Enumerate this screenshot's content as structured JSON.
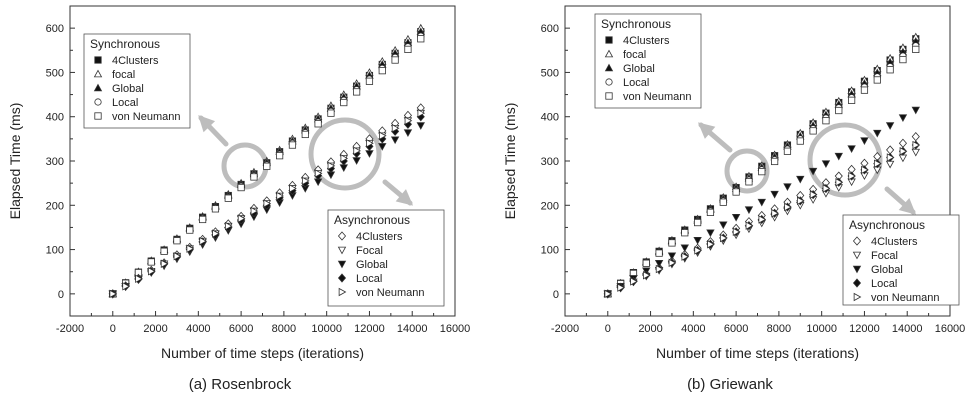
{
  "captions": [
    "(a) Rosenbrock",
    "(b) Griewank"
  ],
  "chart_data": [
    {
      "type": "scatter",
      "xlabel": "Number of time steps (iterations)",
      "ylabel": "Elapsed Time (ms)",
      "xlim": [
        -2000,
        16000
      ],
      "ylim": [
        -50,
        650
      ],
      "xticks": [
        -2000,
        0,
        2000,
        4000,
        6000,
        8000,
        10000,
        12000,
        14000,
        16000
      ],
      "yticks": [
        0,
        100,
        200,
        300,
        400,
        500,
        600
      ],
      "groups": [
        {
          "title": "Synchronous",
          "legend_position": "top-left",
          "series": [
            {
              "name": "4Clusters",
              "marker": "square-filled",
              "values": [
                0,
                25,
                49,
                74,
                99,
                123,
                148,
                173,
                197,
                222,
                247,
                271,
                296,
                321,
                345,
                370,
                395,
                419,
                444,
                469,
                493,
                518,
                543,
                567,
                592
              ]
            },
            {
              "name": "focal",
              "marker": "triangle-up-open",
              "values": [
                0,
                25,
                50,
                75,
                100,
                125,
                150,
                175,
                200,
                225,
                250,
                275,
                300,
                325,
                350,
                375,
                400,
                425,
                450,
                475,
                500,
                525,
                550,
                575,
                600
              ]
            },
            {
              "name": "Global",
              "marker": "triangle-up-filled",
              "values": [
                0,
                25,
                49,
                74,
                99,
                123,
                148,
                173,
                197,
                222,
                247,
                271,
                296,
                321,
                345,
                370,
                395,
                419,
                444,
                469,
                493,
                518,
                543,
                567,
                592
              ]
            },
            {
              "name": "Local",
              "marker": "circle-open",
              "values": [
                0,
                24,
                49,
                73,
                97,
                121,
                146,
                170,
                194,
                218,
                243,
                267,
                291,
                315,
                340,
                364,
                388,
                412,
                437,
                461,
                485,
                509,
                534,
                558,
                582
              ]
            },
            {
              "name": "von Neumann",
              "marker": "square-open",
              "values": [
                0,
                24,
                48,
                72,
                96,
                120,
                144,
                168,
                192,
                216,
                240,
                264,
                288,
                312,
                336,
                360,
                384,
                408,
                432,
                456,
                480,
                504,
                528,
                552,
                576
              ]
            }
          ]
        },
        {
          "title": "Asynchronous",
          "legend_position": "bottom-right",
          "series": [
            {
              "name": "4Clusters",
              "marker": "diamond-open",
              "values": [
                0,
                18,
                35,
                53,
                70,
                88,
                105,
                123,
                140,
                158,
                175,
                193,
                210,
                228,
                245,
                263,
                280,
                298,
                315,
                333,
                350,
                368,
                385,
                403,
                420
              ]
            },
            {
              "name": "Focal",
              "marker": "triangle-down-open",
              "values": [
                0,
                17,
                34,
                51,
                68,
                85,
                102,
                119,
                136,
                153,
                170,
                187,
                204,
                221,
                238,
                255,
                272,
                289,
                306,
                323,
                340,
                357,
                374,
                391,
                408
              ]
            },
            {
              "name": "Global",
              "marker": "triangle-down-filled",
              "values": [
                0,
                16,
                32,
                48,
                63,
                79,
                95,
                111,
                127,
                143,
                158,
                174,
                190,
                206,
                222,
                238,
                253,
                269,
                285,
                301,
                317,
                333,
                348,
                364,
                380
              ]
            },
            {
              "name": "Local",
              "marker": "diamond-filled",
              "values": [
                0,
                17,
                33,
                50,
                67,
                83,
                100,
                117,
                133,
                150,
                167,
                183,
                200,
                217,
                233,
                250,
                267,
                283,
                300,
                317,
                333,
                350,
                367,
                383,
                400
              ]
            },
            {
              "name": "von Neumann",
              "marker": "triangle-right-open",
              "values": [
                0,
                17,
                34,
                51,
                68,
                85,
                102,
                119,
                136,
                153,
                170,
                187,
                204,
                221,
                238,
                255,
                272,
                289,
                306,
                323,
                340,
                357,
                374,
                391,
                408
              ]
            }
          ]
        }
      ]
    },
    {
      "type": "scatter",
      "xlabel": "Number of time steps (iterations)",
      "ylabel": "Elapsed Time (ms)",
      "xlim": [
        -2000,
        16000
      ],
      "ylim": [
        -50,
        650
      ],
      "xticks": [
        -2000,
        0,
        2000,
        4000,
        6000,
        8000,
        10000,
        12000,
        14000,
        16000
      ],
      "yticks": [
        0,
        100,
        200,
        300,
        400,
        500,
        600
      ],
      "groups": [
        {
          "title": "Synchronous",
          "legend_position": "top-left",
          "series": [
            {
              "name": "4Clusters",
              "marker": "square-filled",
              "values": [
                0,
                24,
                48,
                72,
                96,
                120,
                144,
                168,
                192,
                216,
                240,
                264,
                288,
                312,
                336,
                360,
                384,
                408,
                432,
                456,
                480,
                504,
                528,
                552,
                576
              ]
            },
            {
              "name": "focal",
              "marker": "triangle-up-open",
              "values": [
                0,
                24,
                48,
                73,
                97,
                121,
                145,
                169,
                193,
                218,
                242,
                266,
                290,
                314,
                338,
                363,
                387,
                411,
                435,
                459,
                483,
                508,
                532,
                556,
                580
              ]
            },
            {
              "name": "Global",
              "marker": "triangle-up-filled",
              "values": [
                0,
                24,
                48,
                71,
                95,
                119,
                143,
                166,
                190,
                214,
                238,
                261,
                285,
                309,
                333,
                356,
                380,
                404,
                428,
                451,
                475,
                499,
                523,
                546,
                570
              ]
            },
            {
              "name": "Local",
              "marker": "circle-open",
              "values": [
                0,
                23,
                47,
                70,
                93,
                117,
                140,
                163,
                187,
                210,
                233,
                257,
                280,
                303,
                327,
                350,
                373,
                397,
                420,
                443,
                467,
                490,
                513,
                537,
                560
              ]
            },
            {
              "name": "von Neumann",
              "marker": "square-open",
              "values": [
                0,
                23,
                46,
                69,
                92,
                115,
                138,
                161,
                184,
                207,
                230,
                253,
                276,
                299,
                322,
                345,
                368,
                391,
                414,
                437,
                460,
                483,
                506,
                529,
                552
              ]
            }
          ]
        },
        {
          "title": "Asynchronous",
          "legend_position": "bottom-right",
          "series": [
            {
              "name": "4Clusters",
              "marker": "diamond-open",
              "values": [
                0,
                15,
                30,
                44,
                59,
                74,
                89,
                103,
                118,
                133,
                148,
                163,
                177,
                192,
                207,
                222,
                236,
                251,
                266,
                281,
                295,
                310,
                325,
                340,
                355
              ]
            },
            {
              "name": "Focal",
              "marker": "triangle-down-open",
              "values": [
                0,
                13,
                27,
                40,
                53,
                67,
                80,
                93,
                107,
                120,
                133,
                147,
                160,
                173,
                187,
                200,
                213,
                227,
                240,
                253,
                267,
                280,
                293,
                307,
                320
              ]
            },
            {
              "name": "Global",
              "marker": "triangle-down-filled",
              "values": [
                0,
                17,
                35,
                52,
                69,
                86,
                104,
                121,
                138,
                156,
                173,
                190,
                207,
                225,
                242,
                259,
                277,
                294,
                311,
                328,
                346,
                363,
                380,
                398,
                415
              ]
            },
            {
              "name": "Local",
              "marker": "diamond-filled",
              "values": [
                0,
                14,
                28,
                42,
                56,
                70,
                84,
                98,
                112,
                126,
                140,
                154,
                168,
                182,
                196,
                210,
                224,
                238,
                252,
                266,
                280,
                294,
                308,
                322,
                336
              ]
            },
            {
              "name": "von Neumann",
              "marker": "triangle-right-open",
              "values": [
                0,
                14,
                28,
                42,
                56,
                70,
                84,
                98,
                112,
                126,
                140,
                154,
                168,
                182,
                196,
                210,
                224,
                238,
                252,
                266,
                280,
                294,
                308,
                322,
                336
              ]
            }
          ]
        }
      ]
    }
  ]
}
